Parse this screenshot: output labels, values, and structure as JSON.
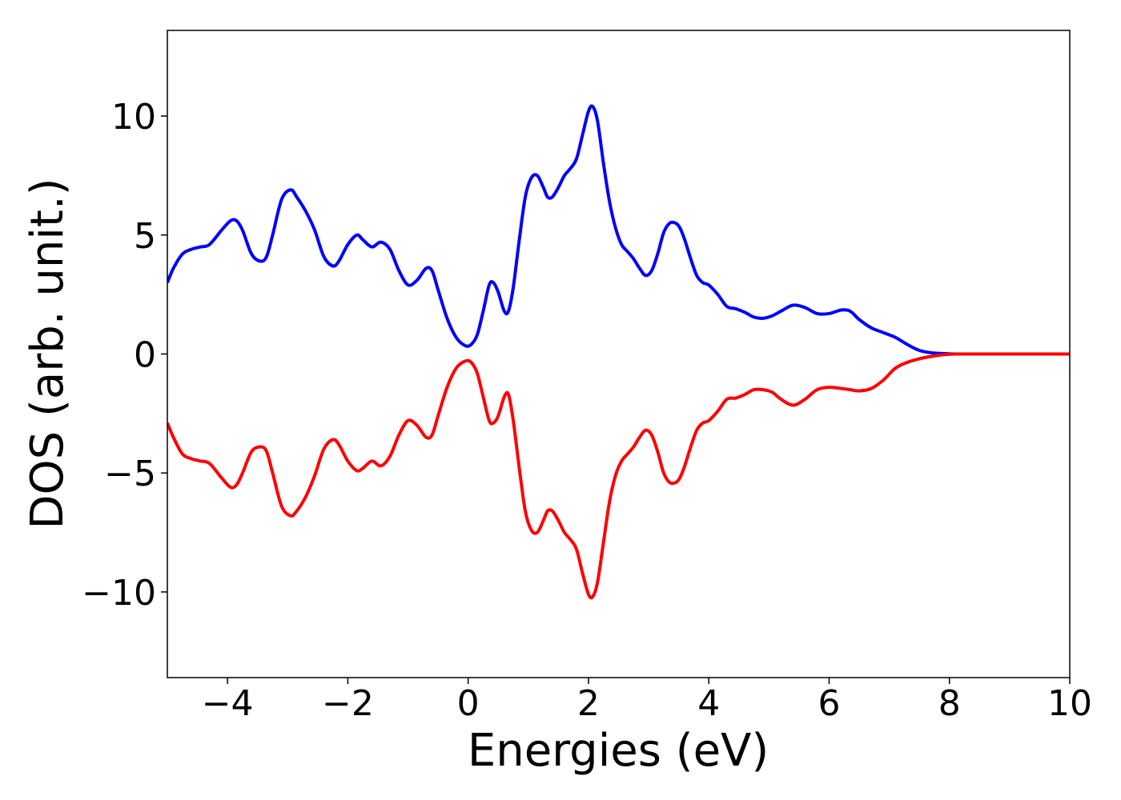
{
  "chart_data": {
    "type": "line",
    "title": "",
    "xlabel": "Energies (eV)",
    "ylabel": "DOS (arb. unit.)",
    "xlim": [
      -5,
      10
    ],
    "ylim": [
      -13.6,
      13.6
    ],
    "xticks": [
      -4,
      -2,
      0,
      2,
      4,
      6,
      8,
      10
    ],
    "xtick_labels": [
      "−4",
      "−2",
      "0",
      "2",
      "4",
      "6",
      "8",
      "10"
    ],
    "yticks": [
      -10,
      -5,
      0,
      5,
      10
    ],
    "ytick_labels": [
      "−10",
      "−5",
      "0",
      "5",
      "10"
    ],
    "grid": false,
    "legend": false,
    "series": [
      {
        "color": "#0000ff",
        "x": [
          -5.0,
          -4.9,
          -4.75,
          -4.6,
          -4.45,
          -4.3,
          -4.1,
          -3.95,
          -3.85,
          -3.75,
          -3.6,
          -3.45,
          -3.35,
          -3.25,
          -3.1,
          -2.95,
          -2.85,
          -2.7,
          -2.55,
          -2.4,
          -2.25,
          -2.15,
          -2.0,
          -1.85,
          -1.75,
          -1.6,
          -1.45,
          -1.3,
          -1.15,
          -1.0,
          -0.85,
          -0.7,
          -0.6,
          -0.5,
          -0.35,
          -0.2,
          -0.05,
          0.05,
          0.15,
          0.25,
          0.35,
          0.42,
          0.5,
          0.6,
          0.67,
          0.75,
          0.85,
          0.95,
          1.05,
          1.15,
          1.25,
          1.32,
          1.4,
          1.5,
          1.6,
          1.7,
          1.8,
          1.9,
          2.0,
          2.07,
          2.15,
          2.25,
          2.35,
          2.45,
          2.55,
          2.65,
          2.75,
          2.85,
          2.95,
          3.05,
          3.15,
          3.25,
          3.35,
          3.45,
          3.52,
          3.6,
          3.7,
          3.8,
          3.9,
          4.0,
          4.15,
          4.3,
          4.45,
          4.6,
          4.75,
          4.9,
          5.05,
          5.2,
          5.4,
          5.6,
          5.8,
          6.0,
          6.2,
          6.35,
          6.5,
          6.7,
          6.9,
          7.1,
          7.3,
          7.5,
          7.7,
          7.9,
          8.1,
          8.5,
          9.0,
          9.5,
          10.0
        ],
        "y": [
          3.0,
          3.6,
          4.2,
          4.4,
          4.5,
          4.6,
          5.2,
          5.6,
          5.6,
          5.2,
          4.2,
          3.9,
          4.1,
          5.0,
          6.5,
          6.9,
          6.6,
          6.0,
          5.2,
          4.1,
          3.7,
          3.9,
          4.6,
          5.0,
          4.8,
          4.5,
          4.7,
          4.4,
          3.5,
          2.9,
          3.1,
          3.6,
          3.5,
          2.7,
          1.5,
          0.7,
          0.35,
          0.4,
          0.8,
          1.8,
          2.9,
          3.0,
          2.6,
          1.8,
          1.8,
          2.8,
          4.8,
          6.6,
          7.4,
          7.5,
          7.0,
          6.6,
          6.6,
          7.0,
          7.5,
          7.8,
          8.2,
          9.2,
          10.2,
          10.4,
          9.8,
          8.0,
          6.4,
          5.3,
          4.6,
          4.3,
          4.0,
          3.6,
          3.3,
          3.5,
          4.2,
          5.1,
          5.5,
          5.5,
          5.3,
          4.8,
          4.0,
          3.3,
          3.0,
          2.9,
          2.5,
          2.0,
          1.9,
          1.75,
          1.55,
          1.5,
          1.6,
          1.8,
          2.05,
          1.95,
          1.7,
          1.7,
          1.85,
          1.8,
          1.45,
          1.1,
          0.9,
          0.7,
          0.4,
          0.15,
          0.05,
          0.02,
          0.0,
          0.0,
          0.0,
          0.0,
          0.0
        ]
      },
      {
        "color": "#ff0000",
        "x": [
          -5.0,
          -4.9,
          -4.75,
          -4.6,
          -4.45,
          -4.3,
          -4.1,
          -3.95,
          -3.85,
          -3.75,
          -3.6,
          -3.45,
          -3.35,
          -3.25,
          -3.1,
          -2.95,
          -2.85,
          -2.7,
          -2.55,
          -2.4,
          -2.25,
          -2.15,
          -2.0,
          -1.85,
          -1.75,
          -1.6,
          -1.45,
          -1.3,
          -1.15,
          -1.0,
          -0.85,
          -0.7,
          -0.6,
          -0.5,
          -0.35,
          -0.2,
          -0.05,
          0.05,
          0.15,
          0.25,
          0.35,
          0.42,
          0.5,
          0.6,
          0.67,
          0.75,
          0.85,
          0.95,
          1.05,
          1.15,
          1.25,
          1.32,
          1.4,
          1.5,
          1.6,
          1.7,
          1.8,
          1.9,
          2.0,
          2.07,
          2.15,
          2.25,
          2.35,
          2.45,
          2.55,
          2.65,
          2.75,
          2.85,
          2.95,
          3.05,
          3.15,
          3.25,
          3.35,
          3.45,
          3.52,
          3.6,
          3.7,
          3.8,
          3.9,
          4.0,
          4.15,
          4.3,
          4.45,
          4.6,
          4.75,
          4.9,
          5.05,
          5.2,
          5.4,
          5.6,
          5.8,
          6.0,
          6.2,
          6.35,
          6.5,
          6.7,
          6.9,
          7.1,
          7.3,
          7.5,
          7.7,
          7.9,
          8.1,
          8.5,
          9.0,
          9.5,
          10.0
        ],
        "y": [
          -2.9,
          -3.5,
          -4.2,
          -4.4,
          -4.5,
          -4.6,
          -5.2,
          -5.6,
          -5.5,
          -5.0,
          -4.1,
          -3.9,
          -4.1,
          -5.0,
          -6.4,
          -6.8,
          -6.6,
          -6.0,
          -5.1,
          -4.0,
          -3.6,
          -3.8,
          -4.5,
          -4.9,
          -4.8,
          -4.5,
          -4.7,
          -4.3,
          -3.4,
          -2.8,
          -3.0,
          -3.5,
          -3.4,
          -2.6,
          -1.4,
          -0.6,
          -0.3,
          -0.35,
          -0.8,
          -1.8,
          -2.8,
          -2.9,
          -2.6,
          -1.8,
          -1.7,
          -2.8,
          -4.8,
          -6.6,
          -7.4,
          -7.5,
          -7.0,
          -6.6,
          -6.6,
          -7.0,
          -7.5,
          -7.8,
          -8.2,
          -9.2,
          -10.1,
          -10.2,
          -9.6,
          -7.9,
          -6.2,
          -5.1,
          -4.5,
          -4.2,
          -3.9,
          -3.5,
          -3.2,
          -3.4,
          -4.1,
          -5.0,
          -5.4,
          -5.4,
          -5.2,
          -4.7,
          -3.9,
          -3.2,
          -2.9,
          -2.8,
          -2.4,
          -1.9,
          -1.85,
          -1.7,
          -1.5,
          -1.5,
          -1.6,
          -1.9,
          -2.15,
          -1.9,
          -1.5,
          -1.4,
          -1.45,
          -1.5,
          -1.55,
          -1.45,
          -1.1,
          -0.6,
          -0.35,
          -0.2,
          -0.1,
          -0.03,
          0.0,
          0.0,
          0.0,
          0.0,
          0.0
        ]
      }
    ]
  }
}
